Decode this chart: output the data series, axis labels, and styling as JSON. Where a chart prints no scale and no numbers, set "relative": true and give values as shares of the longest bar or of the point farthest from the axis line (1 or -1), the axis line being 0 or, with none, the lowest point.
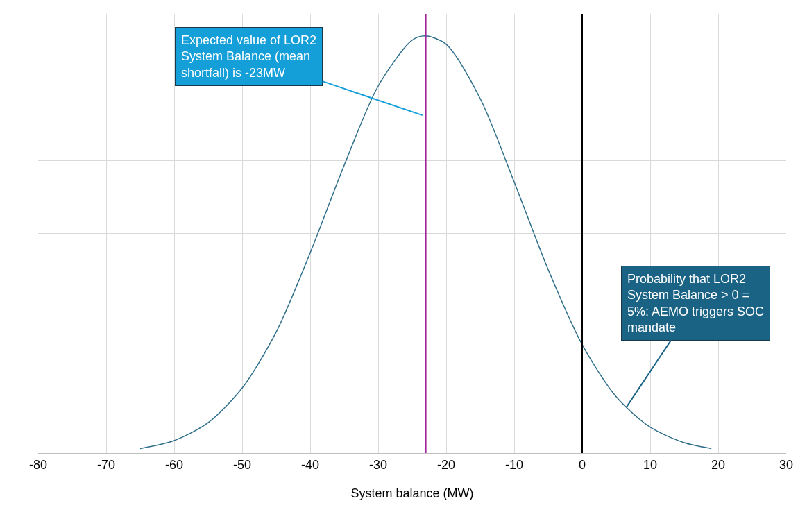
{
  "chart_data": {
    "type": "line",
    "relative": true,
    "xlabel": "System balance (MW)",
    "x": [
      -65,
      -60,
      -55,
      -50,
      -45,
      -40,
      -35,
      -30,
      -25,
      -23,
      -20,
      -15,
      -10,
      -5,
      0,
      5,
      10,
      15,
      19
    ],
    "series": [
      {
        "color": "#2e6e8a",
        "values": [
          0.011,
          0.03,
          0.073,
          0.156,
          0.29,
          0.48,
          0.69,
          0.88,
          0.99,
          1,
          0.98,
          0.85,
          0.65,
          0.44,
          0.26,
          0.135,
          0.062,
          0.025,
          0.011
        ]
      }
    ],
    "xlim": [
      -80,
      30
    ],
    "xticks": [
      -80,
      -70,
      -60,
      -50,
      -40,
      -30,
      -20,
      -10,
      0,
      10,
      20,
      30
    ],
    "grid": true,
    "marker": "none",
    "line_style": "solid",
    "ref_lines": [
      {
        "axis": "x",
        "value": -23,
        "color": "#a0229e"
      },
      {
        "axis": "x",
        "value": 0,
        "color": "#000000"
      }
    ],
    "annotations": [
      {
        "text": "Expected value of LOR2 System Balance (mean shortfall) is -23MW",
        "x": -23.5,
        "y": 0.81
      },
      {
        "text": "Probability that LOR2 System Balance > 0 = 5%: AEMO triggers SOC mandate",
        "x": 6.5,
        "y": 0.11
      }
    ]
  }
}
